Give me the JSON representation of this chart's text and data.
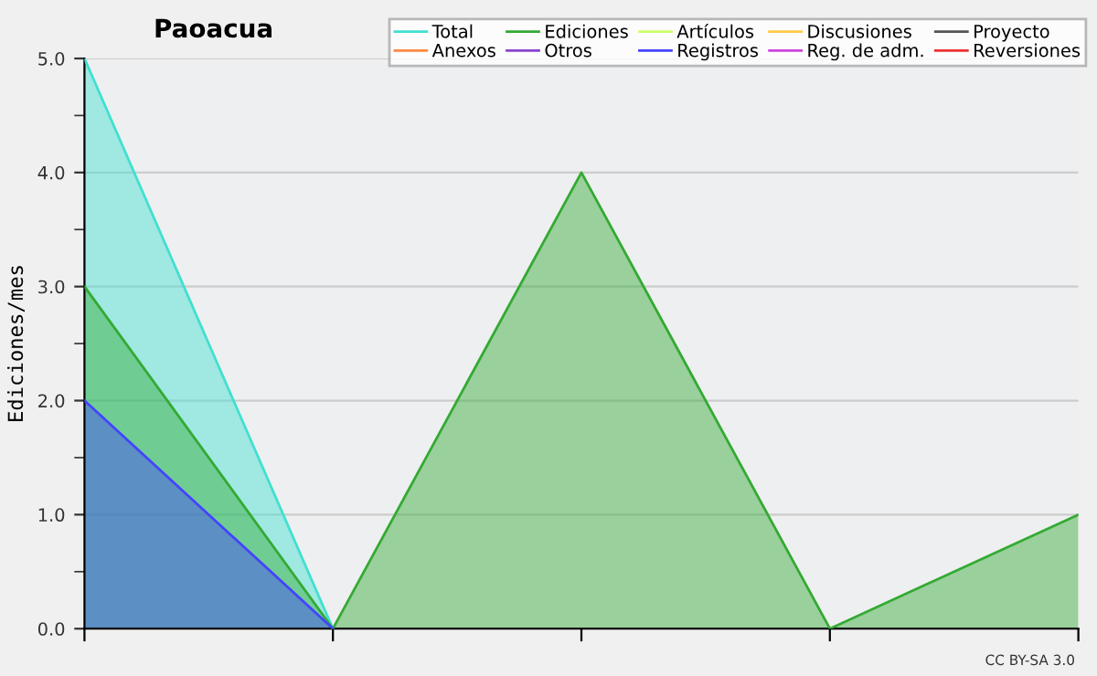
{
  "chart_data": {
    "type": "area",
    "title": "Paoacua",
    "ylabel": "Ediciones/mes",
    "annotations": [
      "CC BY-SA 3.0"
    ],
    "categories": [
      null,
      null,
      null,
      null,
      null
    ],
    "series": [
      {
        "name": "Total",
        "color": "#40e0d0",
        "values": [
          5,
          0,
          null,
          null,
          null
        ]
      },
      {
        "name": "Ediciones",
        "color": "#33aa33",
        "values": [
          3,
          0,
          4,
          0,
          1
        ]
      },
      {
        "name": "Artículos",
        "color": "#ccff66",
        "values": [
          null,
          null,
          null,
          null,
          null
        ]
      },
      {
        "name": "Discusiones",
        "color": "#ffcc44",
        "values": [
          null,
          null,
          null,
          null,
          null
        ]
      },
      {
        "name": "Proyecto",
        "color": "#555555",
        "values": [
          null,
          null,
          null,
          null,
          null
        ]
      },
      {
        "name": "Anexos",
        "color": "#ff8844",
        "values": [
          null,
          null,
          null,
          null,
          null
        ]
      },
      {
        "name": "Otros",
        "color": "#8844cc",
        "values": [
          null,
          null,
          null,
          null,
          null
        ]
      },
      {
        "name": "Registros",
        "color": "#4444ff",
        "values": [
          2,
          0,
          null,
          null,
          null
        ]
      },
      {
        "name": "Reg. de adm.",
        "color": "#cc44dd",
        "values": [
          null,
          null,
          null,
          null,
          null
        ]
      },
      {
        "name": "Reversiones",
        "color": "#ee3333",
        "values": [
          null,
          null,
          null,
          null,
          null
        ]
      }
    ],
    "ylim": [
      0,
      5
    ],
    "yticks": [
      {
        "value": 0,
        "label": "0.0"
      },
      {
        "value": 1,
        "label": "1.0"
      },
      {
        "value": 2,
        "label": "2.0"
      },
      {
        "value": 3,
        "label": "3.0"
      },
      {
        "value": 4,
        "label": "4.0"
      },
      {
        "value": 5,
        "label": "5.0"
      }
    ],
    "grid": "y",
    "legend": "top right"
  }
}
